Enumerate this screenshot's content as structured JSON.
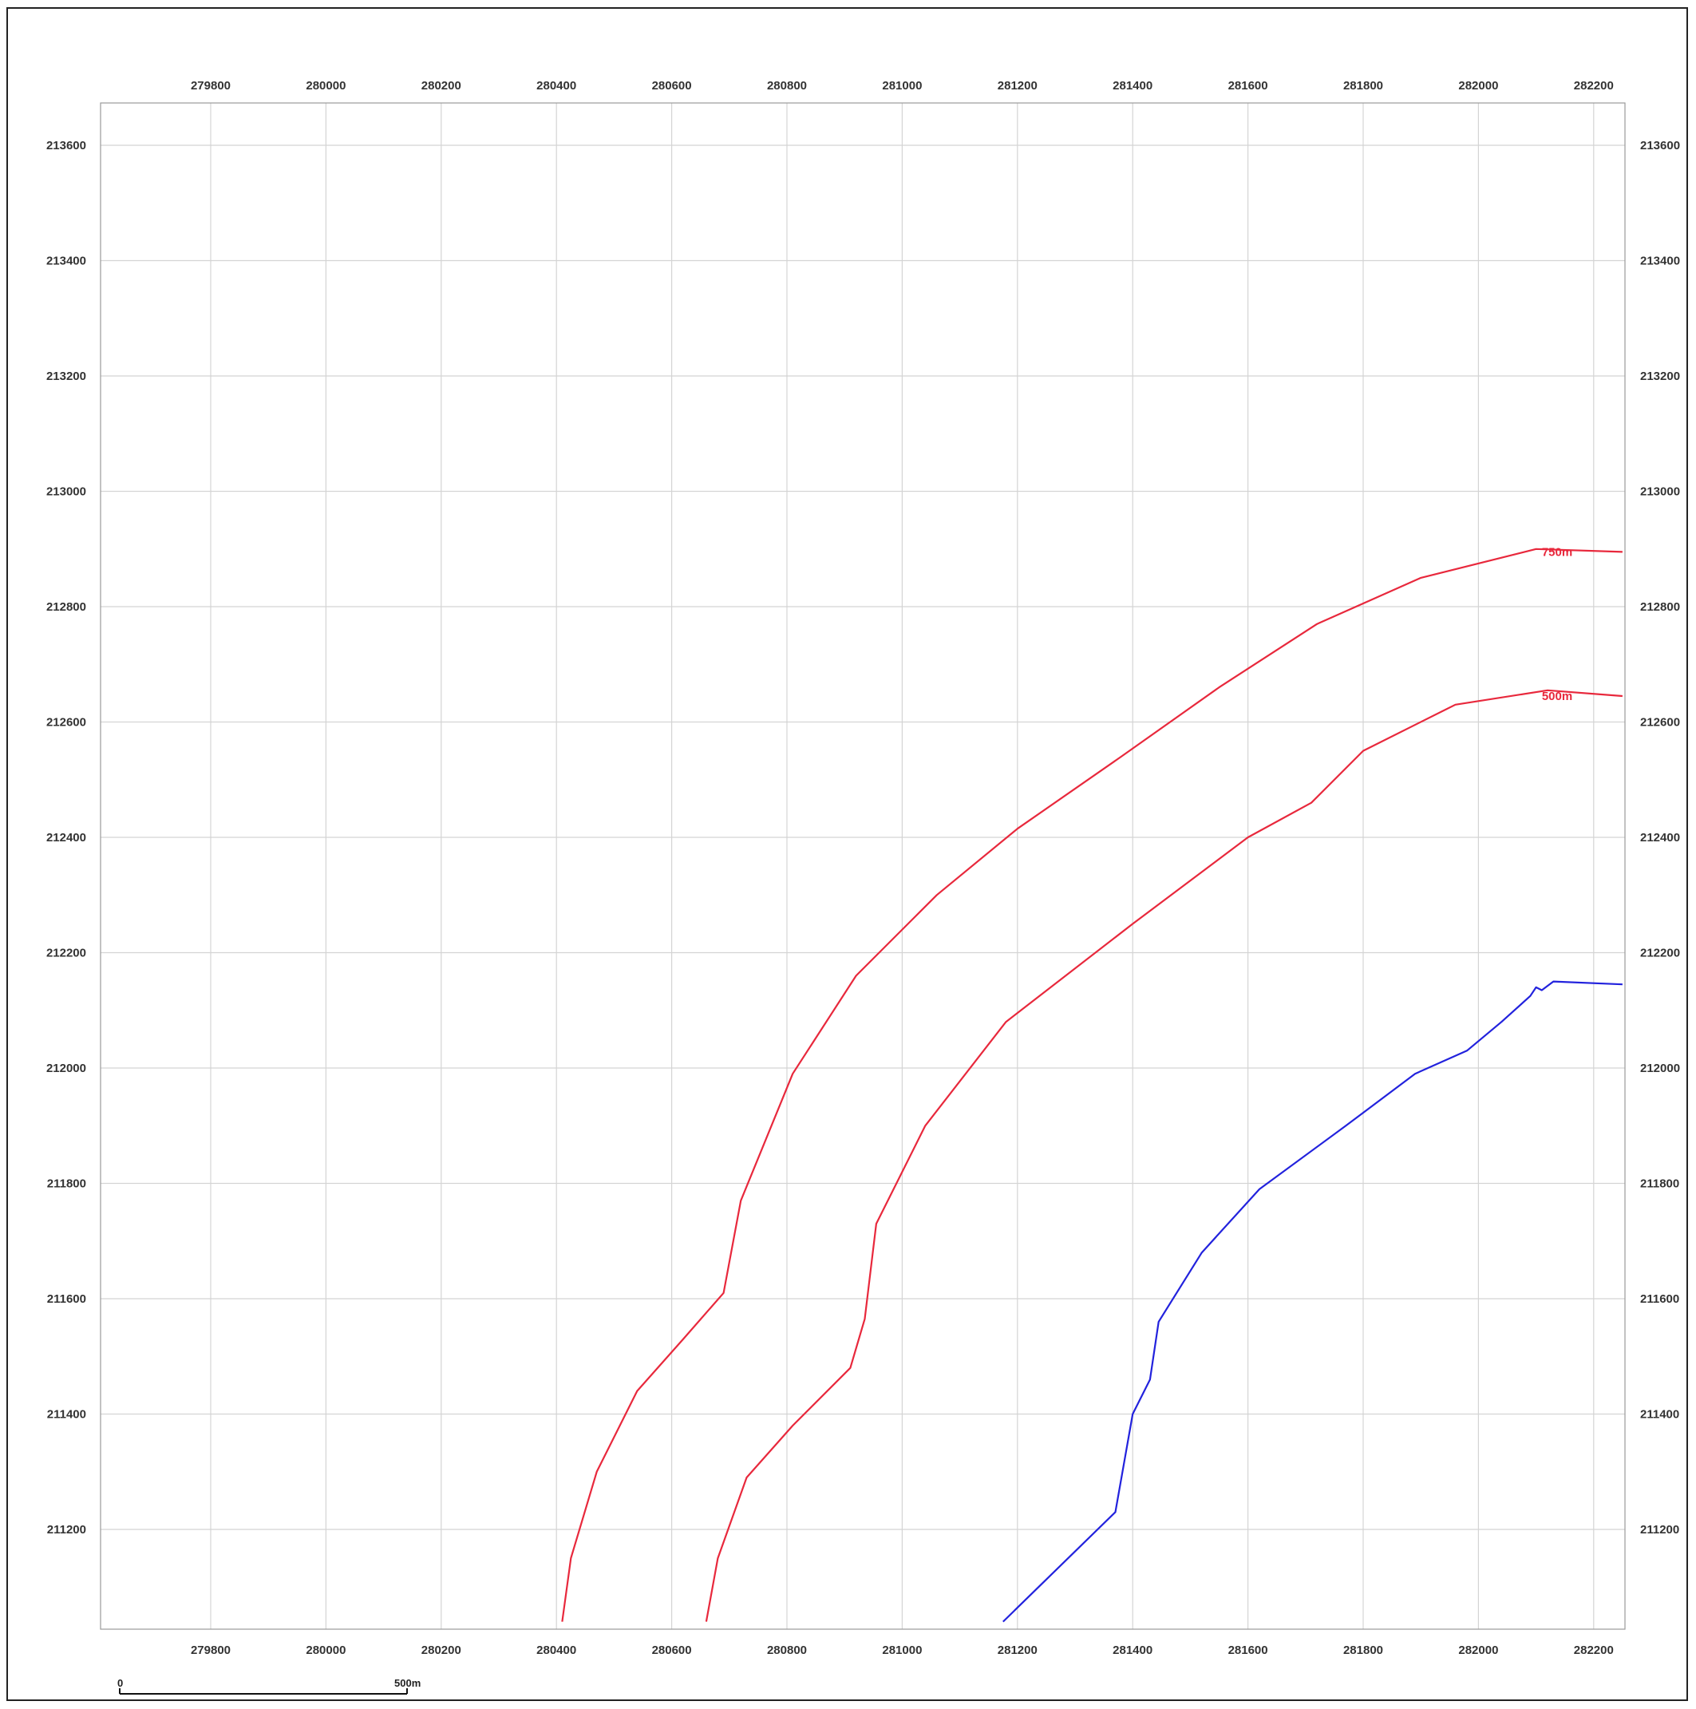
{
  "map": {
    "x_ticks": [
      "279800",
      "280000",
      "280200",
      "280400",
      "280600",
      "280800",
      "281000",
      "281200",
      "281400",
      "281600",
      "281800",
      "282000",
      "282200"
    ],
    "y_ticks": [
      "213600",
      "213400",
      "213200",
      "213000",
      "212800",
      "212600",
      "212400",
      "212200",
      "212000",
      "211800",
      "211600",
      "211400",
      "211200"
    ],
    "grid": true,
    "colors": {
      "grid": "#d4d4d4",
      "frame": "#9a9a9a",
      "contour_750": "#e8283c",
      "contour_500": "#e8283c",
      "boundary": "#2222dd"
    },
    "contours": [
      {
        "label": "750m",
        "color": "#e8283c",
        "label_position": [
          282110,
          212895
        ],
        "points": [
          [
            280410,
            211040
          ],
          [
            280425,
            211150
          ],
          [
            280470,
            211300
          ],
          [
            280540,
            211440
          ],
          [
            280620,
            211530
          ],
          [
            280690,
            211610
          ],
          [
            280720,
            211770
          ],
          [
            280810,
            211990
          ],
          [
            280920,
            212160
          ],
          [
            281060,
            212300
          ],
          [
            281200,
            212415
          ],
          [
            281380,
            212540
          ],
          [
            281550,
            212660
          ],
          [
            281720,
            212770
          ],
          [
            281900,
            212850
          ],
          [
            282100,
            212900
          ],
          [
            282250,
            212895
          ]
        ]
      },
      {
        "label": "500m",
        "color": "#e8283c",
        "label_position": [
          282110,
          212645
        ],
        "points": [
          [
            280660,
            211040
          ],
          [
            280680,
            211150
          ],
          [
            280730,
            211290
          ],
          [
            280810,
            211380
          ],
          [
            280910,
            211480
          ],
          [
            280935,
            211565
          ],
          [
            280955,
            211730
          ],
          [
            281040,
            211900
          ],
          [
            281180,
            212080
          ],
          [
            281400,
            212250
          ],
          [
            281600,
            212400
          ],
          [
            281710,
            212460
          ],
          [
            281800,
            212550
          ],
          [
            281960,
            212630
          ],
          [
            282120,
            212655
          ],
          [
            282250,
            212645
          ]
        ]
      },
      {
        "label": "",
        "color": "#2222dd",
        "label_position": null,
        "points": [
          [
            281175,
            211040
          ],
          [
            281370,
            211230
          ],
          [
            281400,
            211400
          ],
          [
            281430,
            211460
          ],
          [
            281445,
            211560
          ],
          [
            281520,
            211680
          ],
          [
            281620,
            211790
          ],
          [
            281770,
            211900
          ],
          [
            281890,
            211990
          ],
          [
            281980,
            212030
          ],
          [
            282040,
            212080
          ],
          [
            282090,
            212125
          ],
          [
            282100,
            212140
          ],
          [
            282110,
            212135
          ],
          [
            282130,
            212150
          ],
          [
            282250,
            212145
          ]
        ]
      }
    ],
    "scale_bar": {
      "start_label": "0",
      "end_label": "500m"
    }
  }
}
